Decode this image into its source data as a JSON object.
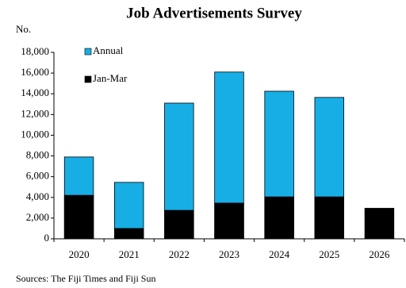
{
  "chart_data": {
    "type": "bar",
    "overlay": true,
    "title": "Job Advertisements Survey",
    "y_label": "No.",
    "categories": [
      "2020",
      "2021",
      "2022",
      "2023",
      "2024",
      "2025",
      "2026"
    ],
    "series": [
      {
        "name": "Annual",
        "color": "#17aee6",
        "values": [
          7900,
          5450,
          13100,
          16100,
          14250,
          13650,
          null
        ]
      },
      {
        "name": "Jan-Mar",
        "color": "#000000",
        "values": [
          4200,
          1000,
          2750,
          3450,
          4050,
          4050,
          2950
        ]
      }
    ],
    "ylim": [
      0,
      18000
    ],
    "yticks": [
      0,
      {
        "value": 2000,
        "label": "2,000"
      },
      {
        "value": 4000,
        "label": "4,000"
      },
      {
        "value": 6000,
        "label": "6,000"
      },
      {
        "value": 8000,
        "label": "8,000"
      },
      {
        "value": 10000,
        "label": "10,000"
      },
      {
        "value": 12000,
        "label": "12,000"
      },
      {
        "value": 14000,
        "label": "14,000"
      },
      {
        "value": 16000,
        "label": "16,000"
      },
      {
        "value": 18000,
        "label": "18,000"
      }
    ],
    "grid": false,
    "legend": "top-left",
    "source": "Sources: The Fiji Times and Fiji Sun"
  }
}
